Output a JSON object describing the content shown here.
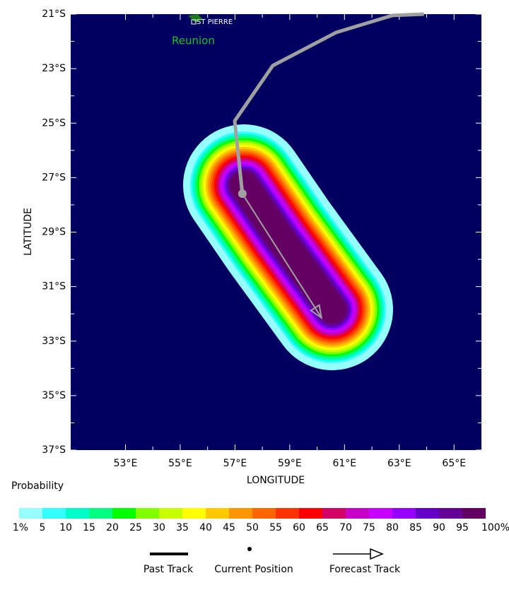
{
  "chart_data": {
    "type": "map",
    "xlabel": "LONGITUDE",
    "ylabel": "LATITUDE",
    "xlim": [
      51,
      66
    ],
    "ylim": [
      -37,
      -21
    ],
    "xticks": [
      {
        "value": 53,
        "label": "53°E"
      },
      {
        "value": 55,
        "label": "55°E"
      },
      {
        "value": 57,
        "label": "57°E"
      },
      {
        "value": 59,
        "label": "59°E"
      },
      {
        "value": 61,
        "label": "61°E"
      },
      {
        "value": 63,
        "label": "63°E"
      },
      {
        "value": 65,
        "label": "65°E"
      }
    ],
    "yticks": [
      {
        "value": -21,
        "label": "21°S"
      },
      {
        "value": -23,
        "label": "23°S"
      },
      {
        "value": -25,
        "label": "25°S"
      },
      {
        "value": -27,
        "label": "27°S"
      },
      {
        "value": -29,
        "label": "29°S"
      },
      {
        "value": -31,
        "label": "31°S"
      },
      {
        "value": -33,
        "label": "33°S"
      },
      {
        "value": -35,
        "label": "35°S"
      },
      {
        "value": -37,
        "label": "37°S"
      }
    ],
    "places": [
      {
        "label": "ST PIERRE"
      },
      {
        "label": "Reunion"
      }
    ],
    "past_track": {
      "lon": [
        63.9,
        62.74,
        60.7,
        58.38,
        56.99,
        57.27
      ],
      "lat": [
        -21.0,
        -21.05,
        -21.67,
        -22.89,
        -24.92,
        -27.59
      ]
    },
    "forecast_track": {
      "lon": [
        57.27,
        60.16
      ],
      "lat": [
        -27.59,
        -32.15
      ]
    },
    "colorbar": {
      "title": "Probability",
      "labels": [
        "1%",
        "5",
        "10",
        "15",
        "20",
        "25",
        "30",
        "35",
        "40",
        "45",
        "50",
        "55",
        "60",
        "65",
        "70",
        "75",
        "80",
        "85",
        "90",
        "95",
        "100%"
      ],
      "colors": [
        "#96ffff",
        "#32ffff",
        "#00ffc8",
        "#00ff80",
        "#00ff00",
        "#80ff00",
        "#c8ff00",
        "#ffff00",
        "#ffc800",
        "#ff9600",
        "#ff6400",
        "#ff3200",
        "#ff0000",
        "#d20064",
        "#c800c8",
        "#c800ff",
        "#9600ff",
        "#6400c8",
        "#640096",
        "#640064"
      ]
    },
    "legend": [
      "Past Track",
      "Current Position",
      "Forecast Track"
    ]
  }
}
